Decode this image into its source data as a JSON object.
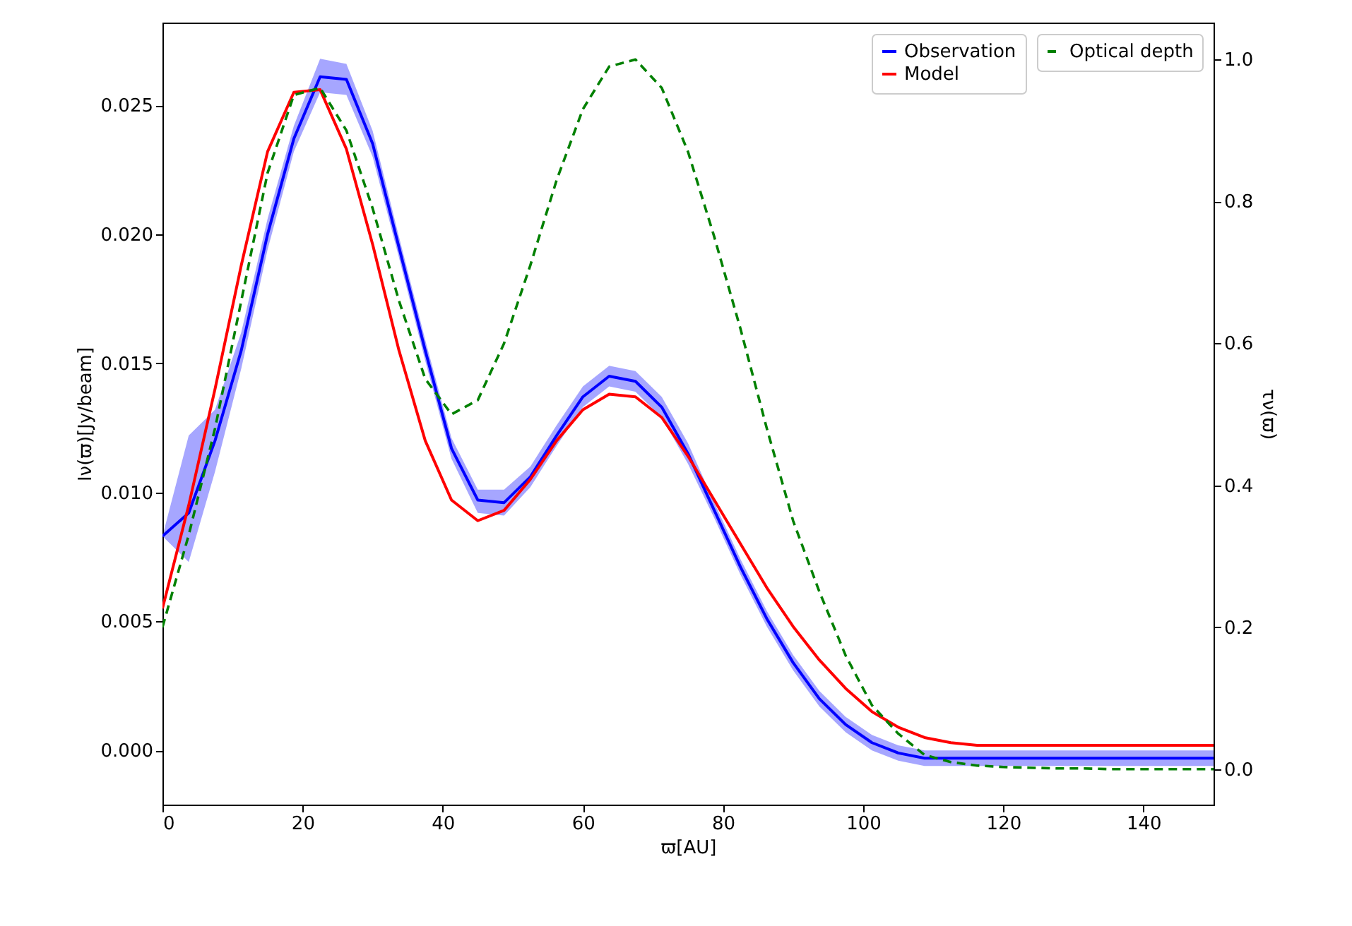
{
  "chart_data": {
    "type": "line",
    "xlabel": "ϖ[AU]",
    "ylabel": "Iν(ϖ)[Jy/beam]",
    "y2label": "τν(ϖ)",
    "x": [
      0,
      3.75,
      7.5,
      11.25,
      15,
      18.75,
      22.5,
      26.25,
      30,
      33.75,
      37.5,
      41.25,
      45,
      48.75,
      52.5,
      56.25,
      60,
      63.75,
      67.5,
      71.25,
      75,
      78.75,
      82.5,
      86.25,
      90,
      93.75,
      97.5,
      101.25,
      105,
      108.75,
      112.5,
      116.25,
      120,
      123.75,
      127.5,
      131.25,
      135,
      138.75,
      142.5,
      146.25,
      150
    ],
    "xlim": [
      0,
      150
    ],
    "xticks": [
      0,
      20,
      40,
      60,
      80,
      100,
      120,
      140
    ],
    "ylim": [
      -0.0021,
      0.0282
    ],
    "yticks": [
      {
        "value": 0,
        "label": "0.000"
      },
      {
        "value": 0.005,
        "label": "0.005"
      },
      {
        "value": 0.01,
        "label": "0.010"
      },
      {
        "value": 0.015,
        "label": "0.015"
      },
      {
        "value": 0.02,
        "label": "0.020"
      },
      {
        "value": 0.025,
        "label": "0.025"
      }
    ],
    "y2lim": [
      -0.05,
      1.052
    ],
    "y2ticks": [
      {
        "value": 0,
        "label": "0.0"
      },
      {
        "value": 0.2,
        "label": "0.2"
      },
      {
        "value": 0.4,
        "label": "0.4"
      },
      {
        "value": 0.6,
        "label": "0.6"
      },
      {
        "value": 0.8,
        "label": "0.8"
      },
      {
        "value": 1,
        "label": "1.0"
      }
    ],
    "grid": false,
    "legend": "top right",
    "marker": "none",
    "series": [
      {
        "name": "Observation",
        "color": "#0000ff",
        "line_style": "solid",
        "values": [
          0.0083,
          0.0092,
          0.012,
          0.0155,
          0.02,
          0.0237,
          0.0261,
          0.026,
          0.0235,
          0.0195,
          0.0155,
          0.0117,
          0.0097,
          0.0096,
          0.0106,
          0.0122,
          0.0137,
          0.0145,
          0.0143,
          0.0133,
          0.0115,
          0.0093,
          0.0071,
          0.0051,
          0.0034,
          0.002,
          0.001,
          0.0003,
          -0.0001,
          -0.0003,
          -0.0003,
          -0.0003,
          -0.0003,
          -0.0003,
          -0.0003,
          -0.0003,
          -0.0003,
          -0.0003,
          -0.0003,
          -0.0003,
          -0.0003
        ],
        "lower": [
          0.0083,
          0.0073,
          0.0108,
          0.0148,
          0.0194,
          0.0232,
          0.0255,
          0.0254,
          0.023,
          0.0191,
          0.0151,
          0.0113,
          0.0092,
          0.0091,
          0.0102,
          0.0118,
          0.0133,
          0.0141,
          0.0139,
          0.0129,
          0.0111,
          0.009,
          0.0068,
          0.0048,
          0.0031,
          0.0017,
          0.0007,
          0,
          -0.0004,
          -0.0006,
          -0.0006,
          -0.0006,
          -0.0006,
          -0.0006,
          -0.0006,
          -0.0006,
          -0.0006,
          -0.0006,
          -0.0006,
          -0.0006,
          -0.0006
        ],
        "upper": [
          0.0083,
          0.0122,
          0.0132,
          0.0162,
          0.0206,
          0.0242,
          0.0268,
          0.0266,
          0.024,
          0.0199,
          0.0159,
          0.0121,
          0.0101,
          0.0101,
          0.011,
          0.0126,
          0.0141,
          0.0149,
          0.0147,
          0.0137,
          0.0119,
          0.0096,
          0.0074,
          0.0054,
          0.0037,
          0.0023,
          0.0013,
          0.0006,
          0.0002,
          0,
          0,
          0,
          0,
          0,
          0,
          0,
          0,
          0,
          0,
          0,
          0
        ]
      },
      {
        "name": "Model",
        "color": "#ff0000",
        "line_style": "solid",
        "values": [
          0.0055,
          0.0095,
          0.014,
          0.0188,
          0.0232,
          0.0255,
          0.0256,
          0.0233,
          0.0196,
          0.0155,
          0.012,
          0.0097,
          0.0089,
          0.0093,
          0.0105,
          0.012,
          0.0132,
          0.0138,
          0.0137,
          0.0129,
          0.0114,
          0.0097,
          0.008,
          0.0063,
          0.0048,
          0.0035,
          0.0024,
          0.0015,
          0.0009,
          0.0005,
          0.0003,
          0.0002,
          0.0002,
          0.0002,
          0.0002,
          0.0002,
          0.0002,
          0.0002,
          0.0002,
          0.0002,
          0.0002
        ]
      },
      {
        "name": "Optical depth",
        "color": "#008000",
        "line_style": "dashed",
        "axis": "y2",
        "values": [
          0.2,
          0.33,
          0.48,
          0.66,
          0.84,
          0.95,
          0.96,
          0.9,
          0.79,
          0.66,
          0.55,
          0.5,
          0.52,
          0.6,
          0.71,
          0.83,
          0.93,
          0.99,
          1.0,
          0.96,
          0.87,
          0.75,
          0.62,
          0.48,
          0.35,
          0.25,
          0.16,
          0.09,
          0.05,
          0.02,
          0.01,
          0.005,
          0.003,
          0.002,
          0.001,
          0.001,
          0,
          0,
          0,
          0,
          0
        ]
      }
    ]
  }
}
